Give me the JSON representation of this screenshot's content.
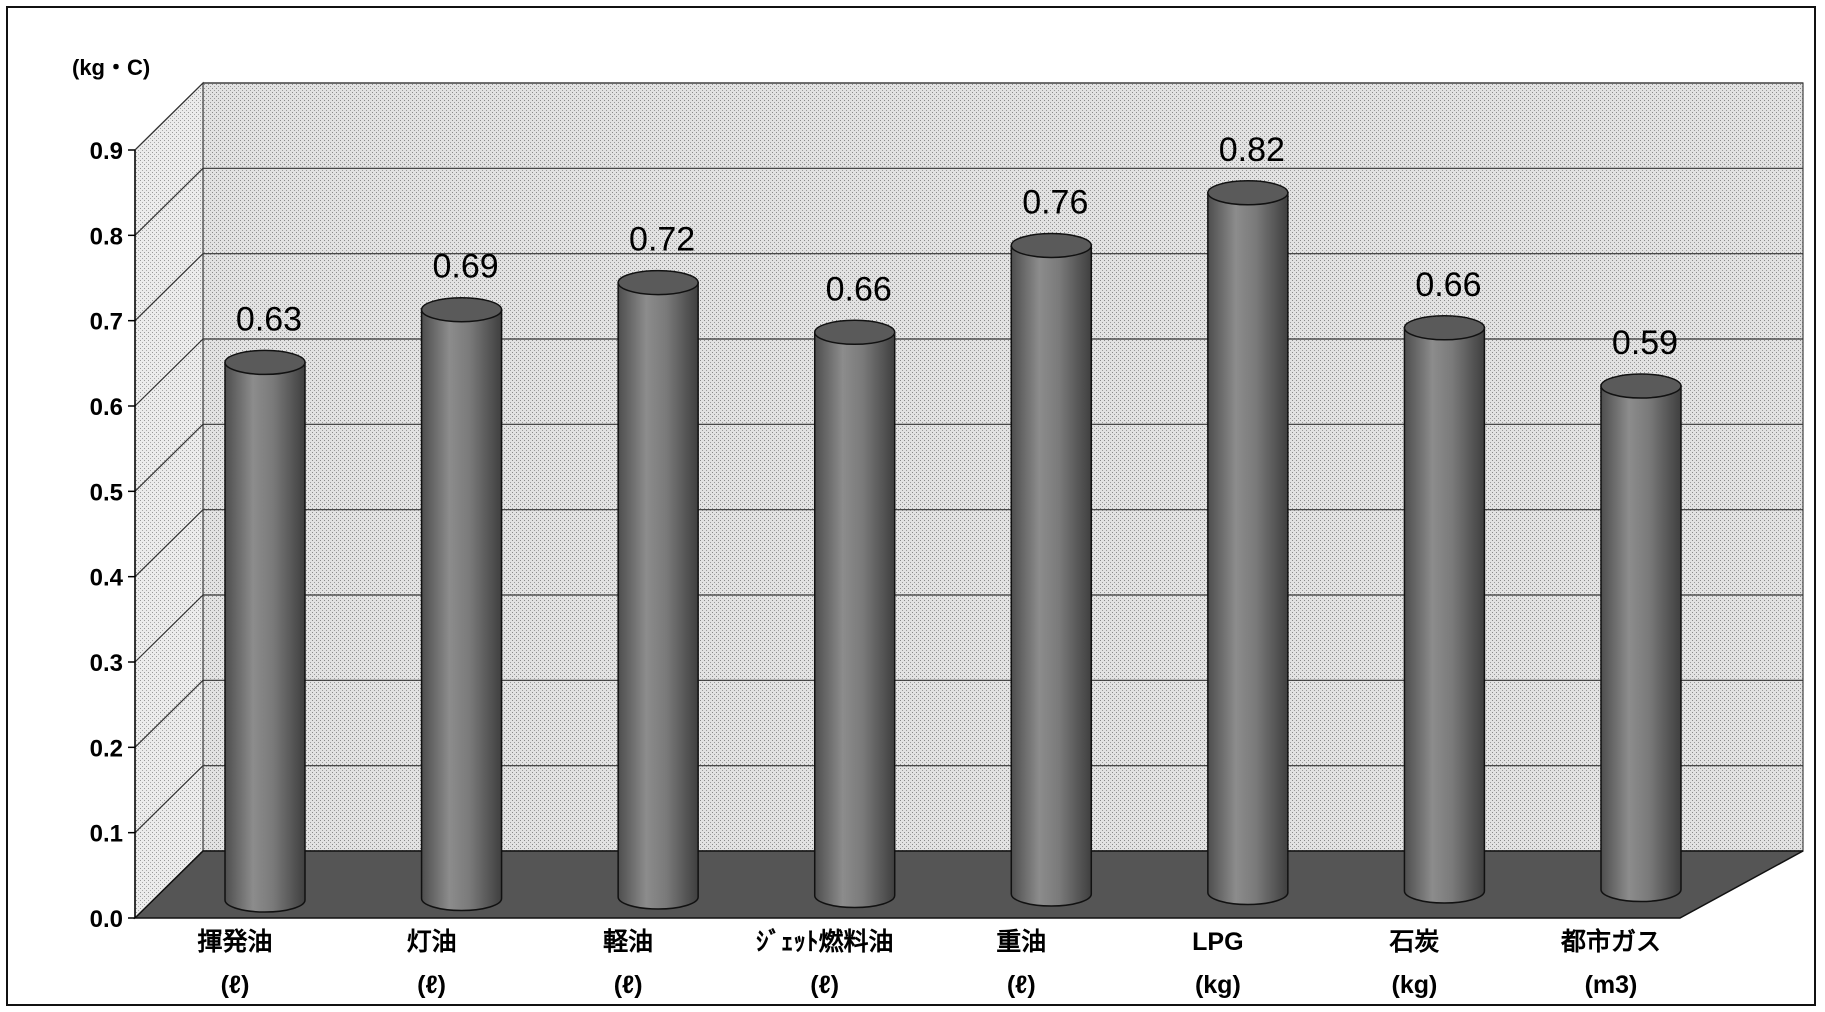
{
  "chart_data": {
    "type": "bar",
    "style": "3d-cylinder",
    "y_unit_label": "(kg・C)",
    "ylim": [
      0,
      0.9
    ],
    "y_ticks": [
      "0.0",
      "0.1",
      "0.2",
      "0.3",
      "0.4",
      "0.5",
      "0.6",
      "0.7",
      "0.8",
      "0.9"
    ],
    "y_tick_values": [
      0,
      0.1,
      0.2,
      0.3,
      0.4,
      0.5,
      0.6,
      0.7,
      0.8,
      0.9
    ],
    "grid": true,
    "categories": [
      {
        "name": "揮発油",
        "unit": "(ℓ)"
      },
      {
        "name": "灯油",
        "unit": "(ℓ)"
      },
      {
        "name": "軽油",
        "unit": "(ℓ)"
      },
      {
        "name": "ｼﾞｪｯﾄ燃料油",
        "unit": "(ℓ)"
      },
      {
        "name": "重油",
        "unit": "(ℓ)"
      },
      {
        "name": "LPG",
        "unit": "(kg)"
      },
      {
        "name": "石炭",
        "unit": "(kg)"
      },
      {
        "name": "都市ガス",
        "unit": "(m3)"
      }
    ],
    "values": [
      0.63,
      0.69,
      0.72,
      0.66,
      0.76,
      0.82,
      0.66,
      0.59
    ],
    "value_labels": [
      "0.63",
      "0.69",
      "0.72",
      "0.66",
      "0.76",
      "0.82",
      "0.66",
      "0.59"
    ],
    "colors": {
      "bar": "#7f7f7f",
      "bar_top": "#5a5a5a",
      "wall": "#d6d6d6",
      "floor": "#555555"
    }
  }
}
